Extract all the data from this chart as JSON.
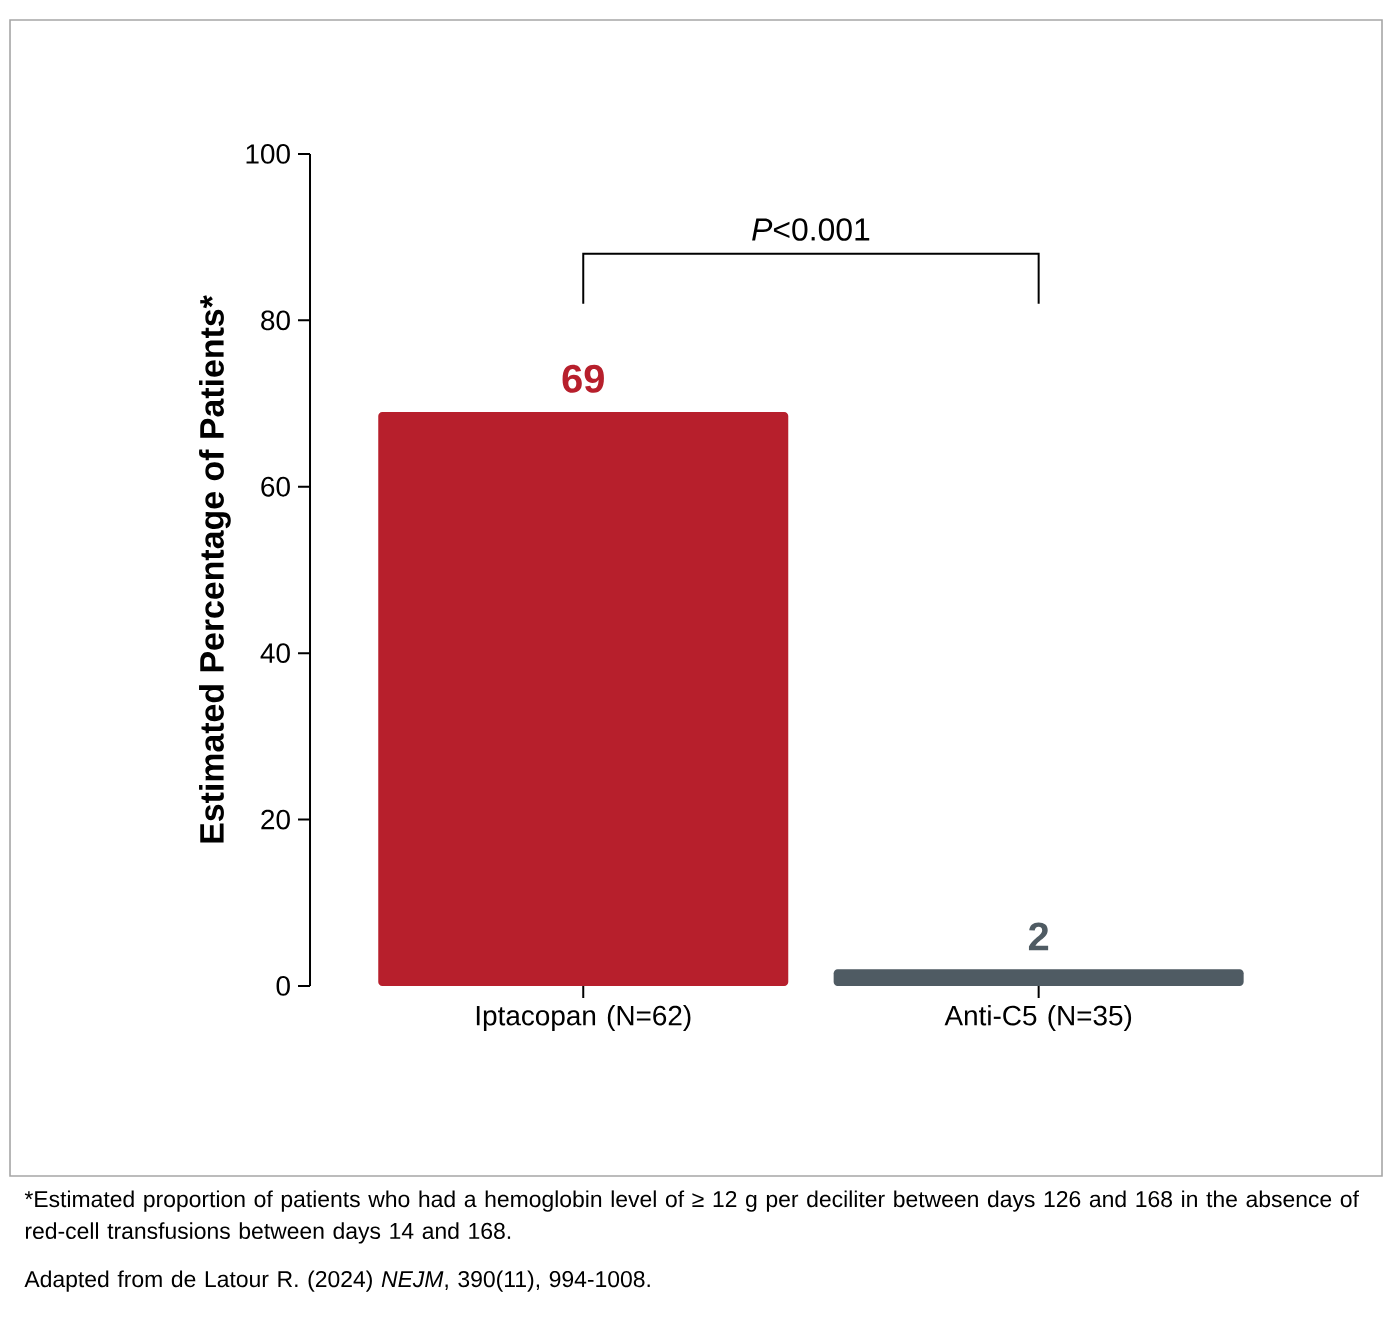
{
  "chart_data": {
    "type": "bar",
    "ylabel": "Estimated Percentage of Patients*",
    "categories": [
      "Iptacopan (N=62)",
      "Anti-C5 (N=35)"
    ],
    "values": [
      69,
      2
    ],
    "colors": [
      "#b71f2c",
      "#4f5b63"
    ],
    "data_labels": true,
    "ylim": [
      0,
      100
    ],
    "yticks": [
      0,
      20,
      40,
      60,
      80,
      100
    ],
    "grid": false,
    "annotations": [
      "*P*<0.001",
      "*Estimated proportion of patients who had a hemoglobin level of ≥ 12 g per deciliter between days 126 and 168 in the absence of red-cell transfusions between days 14 and 168.",
      "Adapted from de Latour R. (2024) *NEJM*, 390(11), 994-1008."
    ]
  }
}
